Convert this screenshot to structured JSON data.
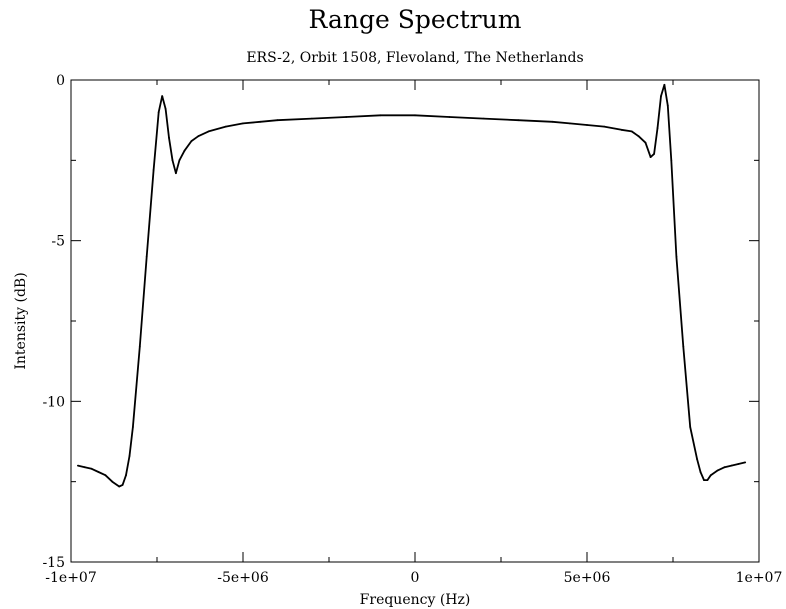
{
  "chart_data": {
    "type": "line",
    "title": "Range Spectrum",
    "subtitle": "ERS-2, Orbit 1508, Flevoland, The Netherlands",
    "xlabel": "Frequency  (Hz)",
    "ylabel": "Intensity  (dB)",
    "xlim": [
      -10000000,
      10000000
    ],
    "ylim": [
      -15,
      0
    ],
    "xticks": [
      {
        "value": -10000000,
        "label": "-1e+07"
      },
      {
        "value": -5000000,
        "label": "-5e+06"
      },
      {
        "value": 0,
        "label": "0"
      },
      {
        "value": 5000000,
        "label": "5e+06"
      },
      {
        "value": 10000000,
        "label": "1e+07"
      }
    ],
    "yticks": [
      {
        "value": 0,
        "label": "0"
      },
      {
        "value": -5,
        "label": "-5"
      },
      {
        "value": -10,
        "label": "-10"
      },
      {
        "value": -15,
        "label": "-15"
      }
    ],
    "grid": false,
    "series_color": "#000000",
    "series": [
      {
        "x": [
          -9800000,
          -9600000,
          -9400000,
          -9200000,
          -9000000,
          -8800000,
          -8600000,
          -8500000,
          -8400000,
          -8300000,
          -8200000,
          -8000000,
          -7800000,
          -7600000,
          -7450000,
          -7350000,
          -7250000,
          -7150000,
          -7050000,
          -6950000,
          -6850000,
          -6700000,
          -6500000,
          -6300000,
          -6000000,
          -5500000,
          -5000000,
          -4500000,
          -4000000,
          -3000000,
          -2000000,
          -1000000,
          0,
          1000000,
          2000000,
          3000000,
          4000000,
          4500000,
          5000000,
          5500000,
          6000000,
          6300000,
          6500000,
          6700000,
          6850000,
          6950000,
          7050000,
          7150000,
          7250000,
          7350000,
          7450000,
          7600000,
          7800000,
          8000000,
          8200000,
          8300000,
          8400000,
          8500000,
          8600000,
          8800000,
          9000000,
          9200000,
          9400000,
          9600000
        ],
        "y": [
          -12.0,
          -12.05,
          -12.1,
          -12.2,
          -12.3,
          -12.5,
          -12.65,
          -12.6,
          -12.3,
          -11.7,
          -10.8,
          -8.3,
          -5.5,
          -2.8,
          -1.0,
          -0.5,
          -0.9,
          -1.8,
          -2.5,
          -2.9,
          -2.5,
          -2.2,
          -1.9,
          -1.75,
          -1.6,
          -1.45,
          -1.35,
          -1.3,
          -1.25,
          -1.2,
          -1.15,
          -1.1,
          -1.1,
          -1.15,
          -1.2,
          -1.25,
          -1.3,
          -1.35,
          -1.4,
          -1.45,
          -1.55,
          -1.6,
          -1.75,
          -1.95,
          -2.4,
          -2.3,
          -1.5,
          -0.5,
          -0.15,
          -0.8,
          -2.5,
          -5.5,
          -8.3,
          -10.8,
          -11.8,
          -12.2,
          -12.45,
          -12.45,
          -12.3,
          -12.15,
          -12.05,
          -12.0,
          -11.95,
          -11.9
        ]
      }
    ]
  }
}
